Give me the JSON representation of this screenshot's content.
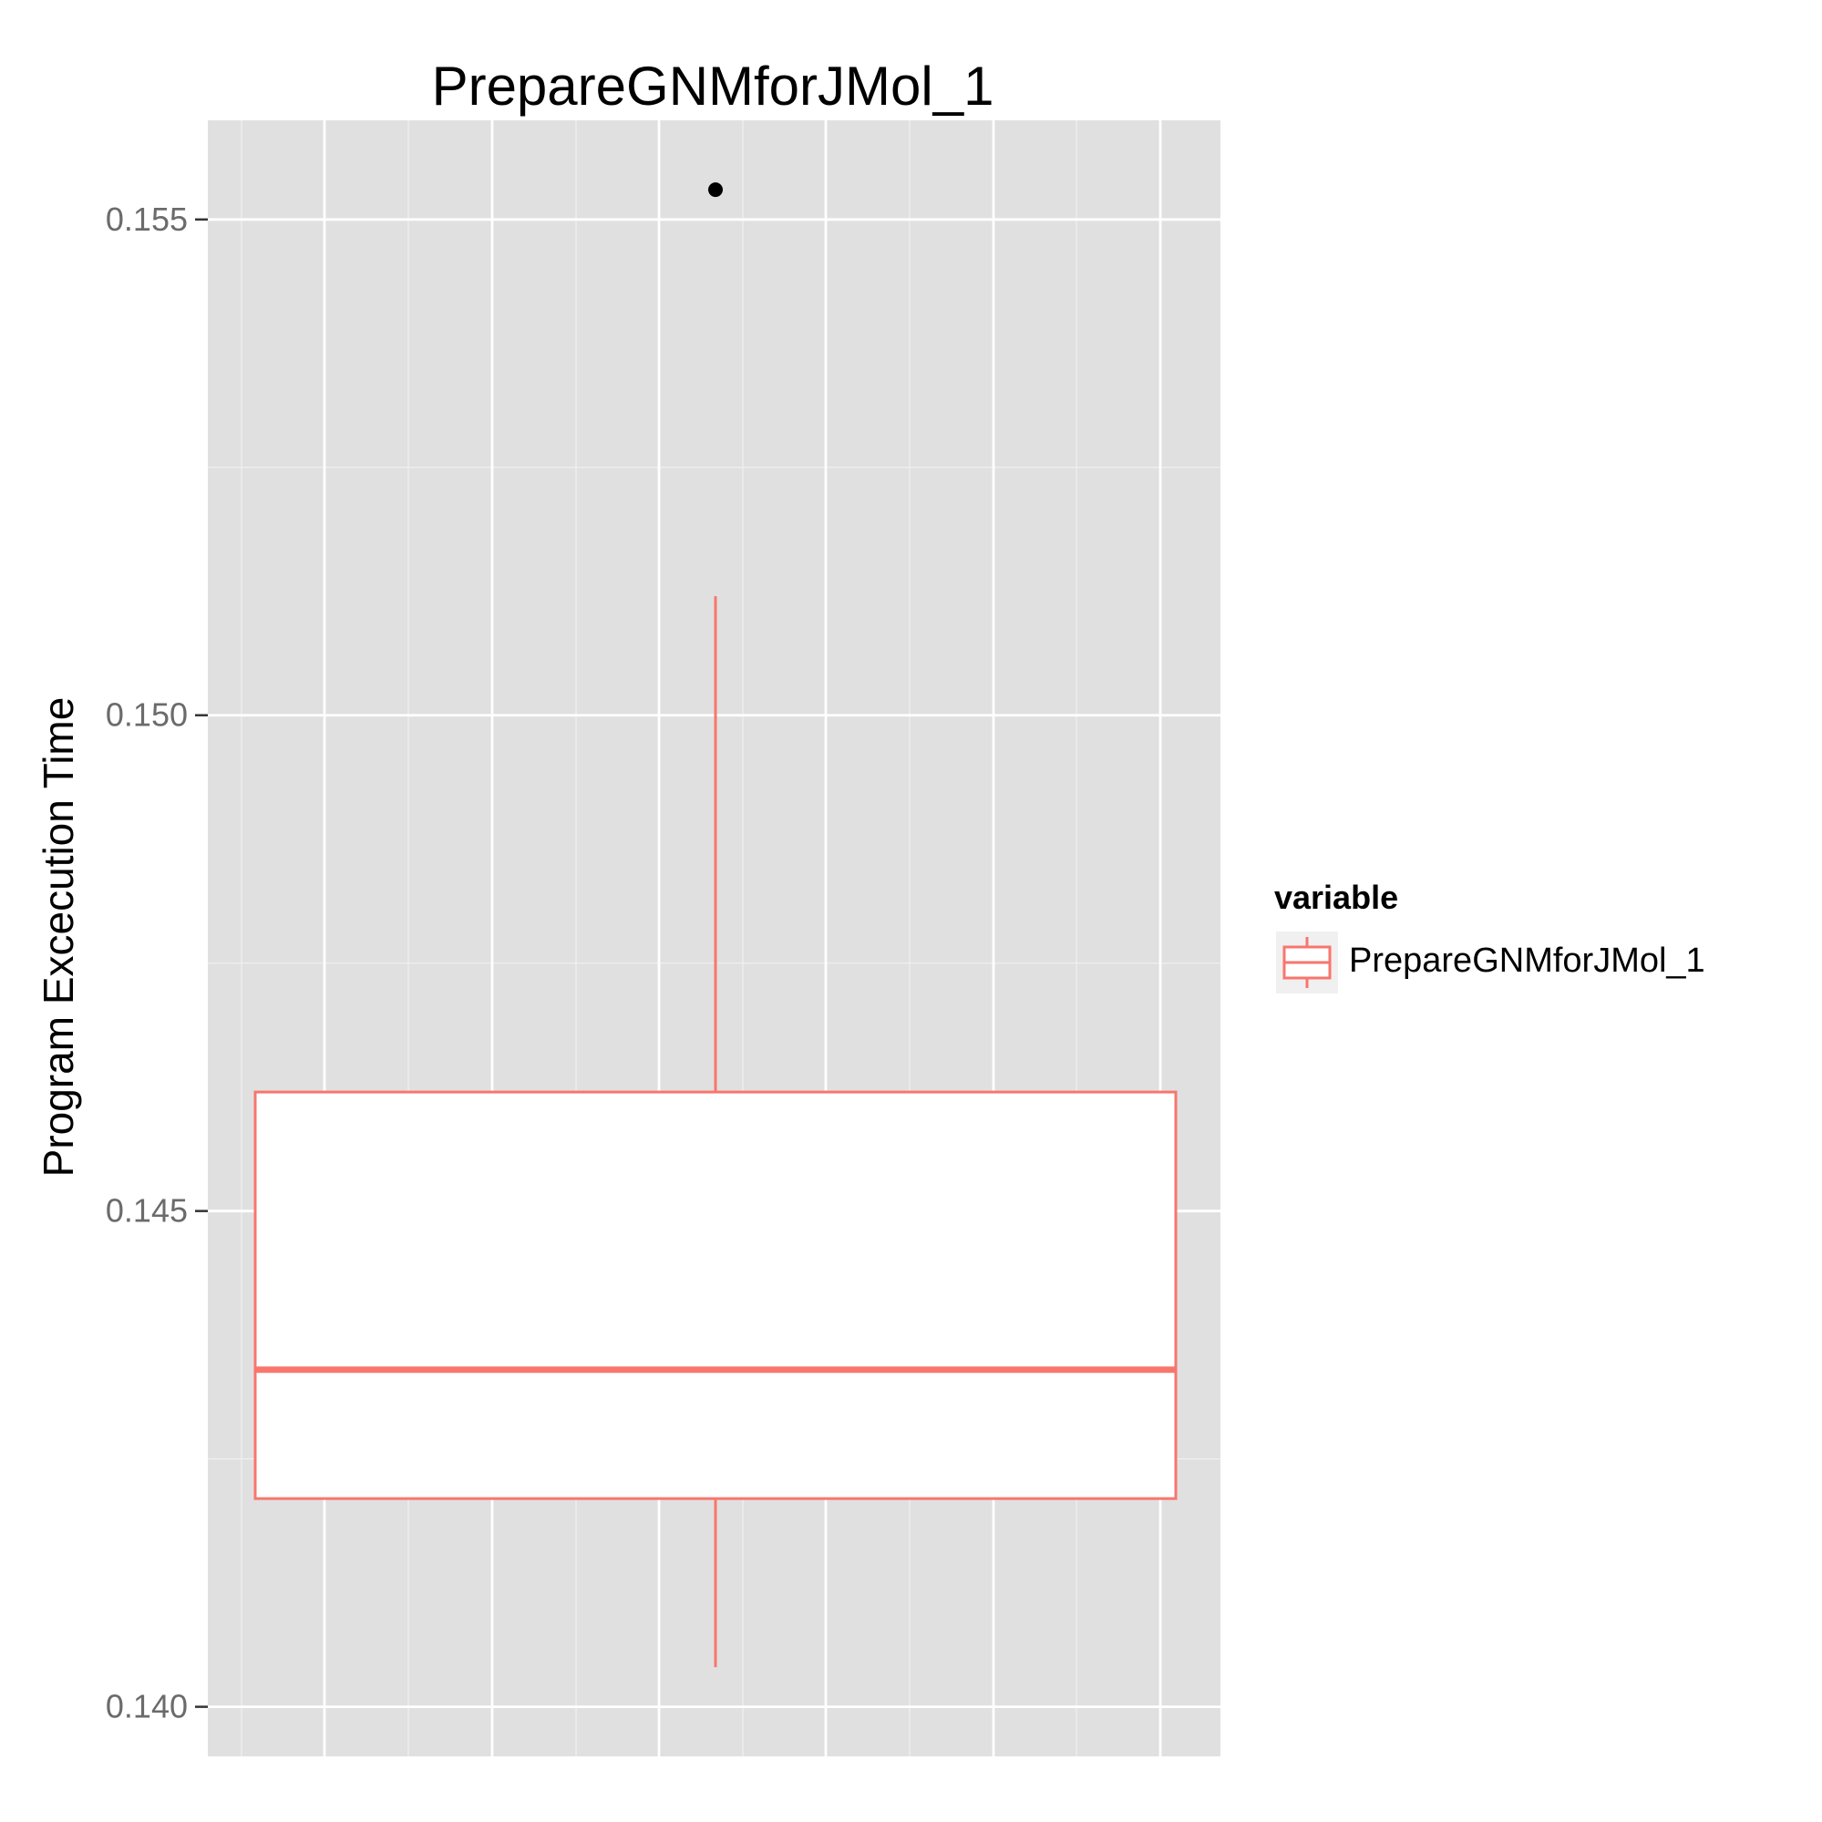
{
  "chart_data": {
    "type": "boxplot",
    "title": "PrepareGNMforJMol_1",
    "xlabel": "",
    "ylabel": "Program Excecution Time",
    "ylim": [
      0.1395,
      0.156
    ],
    "y_ticks": [
      0.14,
      0.145,
      0.15,
      0.155
    ],
    "y_tick_labels": [
      "0.140",
      "0.145",
      "0.150",
      "0.155"
    ],
    "y_minor_ticks": [
      0.1425,
      0.1475,
      0.1525
    ],
    "grid": true,
    "legend": {
      "title": "variable",
      "position": "right",
      "entries": [
        "PrepareGNMforJMol_1"
      ]
    },
    "series": [
      {
        "name": "PrepareGNMforJMol_1",
        "color": "#F8766D",
        "whisker_low": 0.1404,
        "q1": 0.1421,
        "median": 0.1434,
        "q3": 0.1462,
        "whisker_high": 0.1512,
        "outliers": [
          0.1553
        ]
      }
    ]
  },
  "colors": {
    "panel_bg": "#E0E0E0",
    "grid_major": "#FFFFFF",
    "grid_minor": "#F0F0F0",
    "box_stroke": "#F8766D",
    "box_fill": "#FFFFFF",
    "outlier": "#000000",
    "tick_text": "#6B6B6B",
    "legend_key_bg": "#F0F0F0"
  }
}
